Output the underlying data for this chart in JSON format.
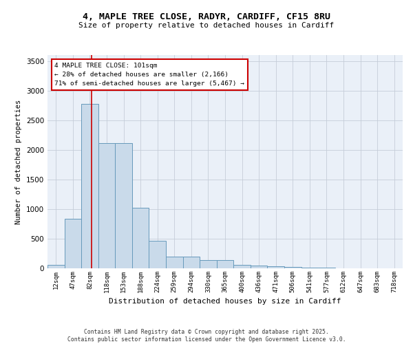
{
  "title_line1": "4, MAPLE TREE CLOSE, RADYR, CARDIFF, CF15 8RU",
  "title_line2": "Size of property relative to detached houses in Cardiff",
  "xlabel": "Distribution of detached houses by size in Cardiff",
  "ylabel": "Number of detached properties",
  "bar_color": "#c9daea",
  "bar_edge_color": "#6699bb",
  "categories": [
    "12sqm",
    "47sqm",
    "82sqm",
    "118sqm",
    "153sqm",
    "188sqm",
    "224sqm",
    "259sqm",
    "294sqm",
    "330sqm",
    "365sqm",
    "400sqm",
    "436sqm",
    "471sqm",
    "506sqm",
    "541sqm",
    "577sqm",
    "612sqm",
    "647sqm",
    "683sqm",
    "718sqm"
  ],
  "values": [
    55,
    840,
    2780,
    2110,
    2110,
    1020,
    460,
    200,
    200,
    140,
    140,
    55,
    45,
    30,
    18,
    10,
    8,
    5,
    3,
    2,
    2
  ],
  "ylim": [
    0,
    3600
  ],
  "yticks": [
    0,
    500,
    1000,
    1500,
    2000,
    2500,
    3000,
    3500
  ],
  "vline_x_index": 2,
  "vline_color": "#cc0000",
  "annotation_box_text": "4 MAPLE TREE CLOSE: 101sqm\n← 28% of detached houses are smaller (2,166)\n71% of semi-detached houses are larger (5,467) →",
  "bg_color": "#eaf0f8",
  "grid_color": "#c5cdd8",
  "footer_line1": "Contains HM Land Registry data © Crown copyright and database right 2025.",
  "footer_line2": "Contains public sector information licensed under the Open Government Licence v3.0."
}
